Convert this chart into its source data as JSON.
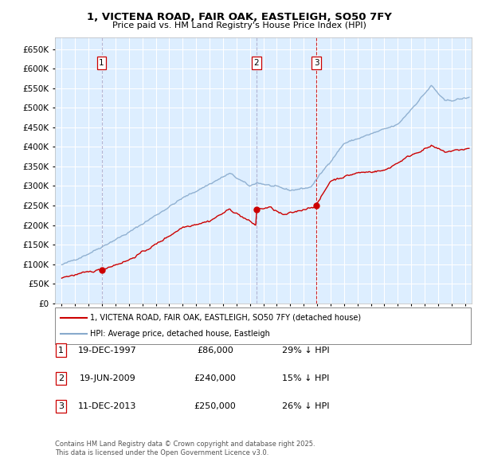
{
  "title": "1, VICTENA ROAD, FAIR OAK, EASTLEIGH, SO50 7FY",
  "subtitle": "Price paid vs. HM Land Registry's House Price Index (HPI)",
  "transactions": [
    {
      "num": 1,
      "date": "19-DEC-1997",
      "price": 86000,
      "pct": "29%",
      "direction": "↓",
      "x_year": 1997.97,
      "vline_color": "#aaaacc",
      "vline_style": "--"
    },
    {
      "num": 2,
      "date": "19-JUN-2009",
      "price": 240000,
      "pct": "15%",
      "direction": "↓",
      "x_year": 2009.47,
      "vline_color": "#aaaacc",
      "vline_style": "--"
    },
    {
      "num": 3,
      "date": "11-DEC-2013",
      "price": 250000,
      "pct": "26%",
      "direction": "↓",
      "x_year": 2013.94,
      "vline_color": "#cc0000",
      "vline_style": "--"
    }
  ],
  "legend_line1": "1, VICTENA ROAD, FAIR OAK, EASTLEIGH, SO50 7FY (detached house)",
  "legend_line2": "HPI: Average price, detached house, Eastleigh",
  "footer1": "Contains HM Land Registry data © Crown copyright and database right 2025.",
  "footer2": "This data is licensed under the Open Government Licence v3.0.",
  "red_color": "#cc0000",
  "blue_color": "#88aacc",
  "bg_color": "#ddeeff",
  "grid_color": "#ffffff",
  "box_color_1": "#cc0000",
  "box_color_2": "#aaaacc",
  "box_color_3": "#cc0000",
  "ylim": [
    0,
    680000
  ],
  "xlim": [
    1994.5,
    2025.5
  ],
  "dot_y1": 86000,
  "dot_y2": 240000,
  "dot_y3": 250000
}
